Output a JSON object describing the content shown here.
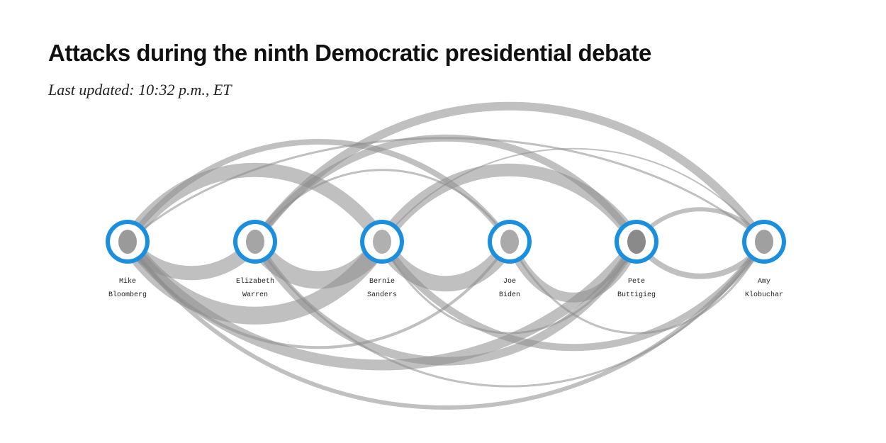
{
  "header": {
    "title": "Attacks during the ninth Democratic presidential debate",
    "subtitle": "Last updated: 10:32 p.m., ET"
  },
  "nodes": [
    {
      "first": "Mike",
      "last": "Bloomberg"
    },
    {
      "first": "Elizabeth",
      "last": "Warren"
    },
    {
      "first": "Bernie",
      "last": "Sanders"
    },
    {
      "first": "Joe",
      "last": "Biden"
    },
    {
      "first": "Pete",
      "last": "Buttigieg"
    },
    {
      "first": "Amy",
      "last": "Klobuchar"
    }
  ]
}
